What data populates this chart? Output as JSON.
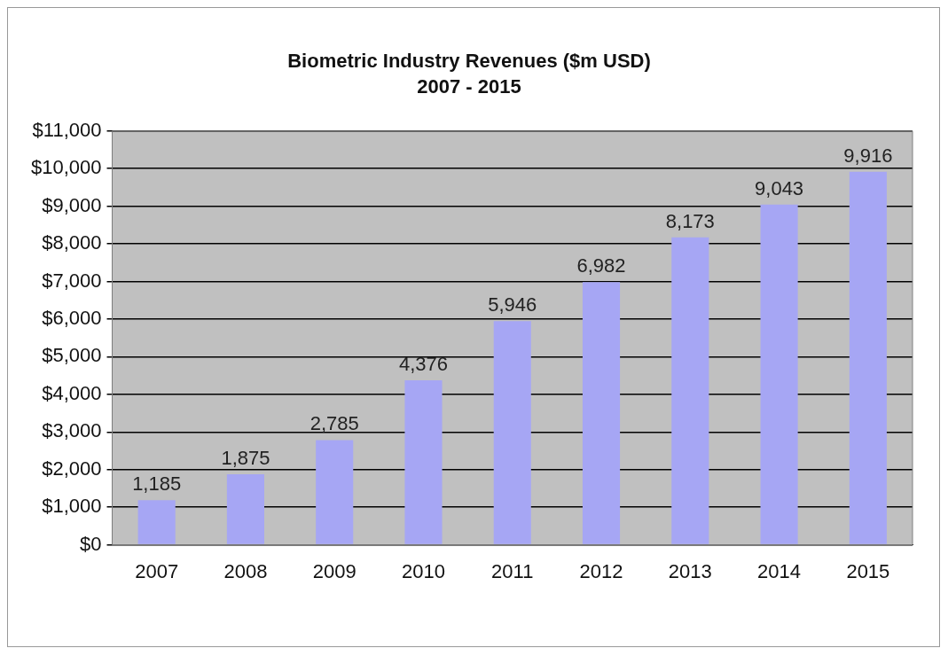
{
  "chart_data": {
    "type": "bar",
    "title": "Biometric Industry Revenues ($m USD)",
    "subtitle": "2007 - 2015",
    "categories": [
      "2007",
      "2008",
      "2009",
      "2010",
      "2011",
      "2012",
      "2013",
      "2014",
      "2015"
    ],
    "values": [
      1185,
      1875,
      2785,
      4376,
      5946,
      6982,
      8173,
      9043,
      9916
    ],
    "color": "#a6a6f4",
    "ylim": [
      0,
      11000
    ],
    "yticks": [
      {
        "value": 0,
        "label": "$0"
      },
      {
        "value": 1000,
        "label": "$1,000"
      },
      {
        "value": 2000,
        "label": "$2,000"
      },
      {
        "value": 3000,
        "label": "$3,000"
      },
      {
        "value": 4000,
        "label": "$4,000"
      },
      {
        "value": 5000,
        "label": "$5,000"
      },
      {
        "value": 6000,
        "label": "$6,000"
      },
      {
        "value": 7000,
        "label": "$7,000"
      },
      {
        "value": 8000,
        "label": "$8,000"
      },
      {
        "value": 9000,
        "label": "$9,000"
      },
      {
        "value": 10000,
        "label": "$10,000"
      },
      {
        "value": 11000,
        "label": "$11,000"
      }
    ],
    "value_labels": [
      "1,185",
      "1,875",
      "2,785",
      "4,376",
      "5,946",
      "6,982",
      "8,173",
      "9,043",
      "9,916"
    ],
    "grid": "y",
    "legend": false
  }
}
